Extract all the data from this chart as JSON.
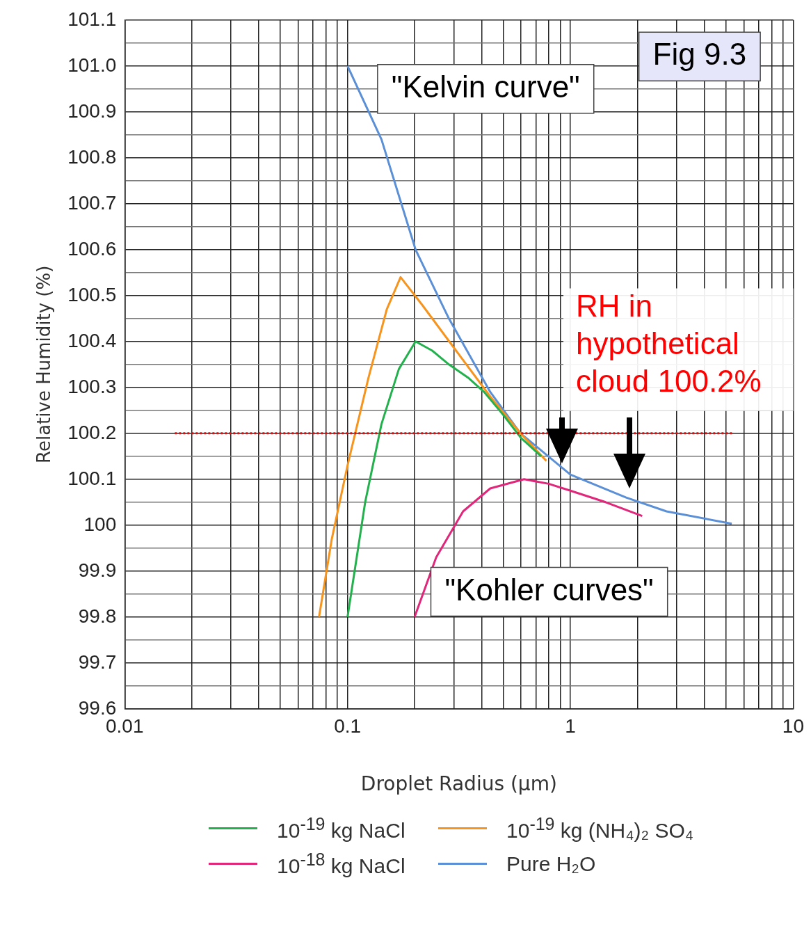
{
  "chart_data": {
    "type": "line",
    "xlabel": "Droplet Radius (μm)",
    "ylabel": "Relative Humidity (%)",
    "log": "x",
    "xlim": [
      0.01,
      10
    ],
    "ylim": [
      99.6,
      101.1
    ],
    "xticks": [
      0.01,
      {
        "value": 0.02,
        "label": null
      },
      {
        "value": 0.03,
        "label": null
      },
      {
        "value": 0.04,
        "label": null
      },
      {
        "value": 0.05,
        "label": null
      },
      {
        "value": 0.06,
        "label": null
      },
      {
        "value": 0.07,
        "label": null
      },
      {
        "value": 0.08,
        "label": null
      },
      {
        "value": 0.09,
        "label": null
      },
      0.1,
      {
        "value": 0.2,
        "label": null
      },
      {
        "value": 0.3,
        "label": null
      },
      {
        "value": 0.4,
        "label": null
      },
      {
        "value": 0.5,
        "label": null
      },
      {
        "value": 0.6,
        "label": null
      },
      {
        "value": 0.7,
        "label": null
      },
      {
        "value": 0.8,
        "label": null
      },
      {
        "value": 0.9,
        "label": null
      },
      1,
      {
        "value": 2,
        "label": null
      },
      {
        "value": 3,
        "label": null
      },
      {
        "value": 4,
        "label": null
      },
      {
        "value": 5,
        "label": null
      },
      {
        "value": 6,
        "label": null
      },
      {
        "value": 7,
        "label": null
      },
      {
        "value": 8,
        "label": null
      },
      {
        "value": 9,
        "label": null
      },
      10
    ],
    "yticks": [
      99.6,
      {
        "value": 99.65,
        "label": null
      },
      99.7,
      {
        "value": 99.75,
        "label": null
      },
      99.8,
      {
        "value": 99.85,
        "label": null
      },
      99.9,
      {
        "value": 99.95,
        "label": null
      },
      100,
      {
        "value": 100.05,
        "label": null
      },
      100.1,
      {
        "value": 100.15,
        "label": null
      },
      100.2,
      {
        "value": 100.25,
        "label": null
      },
      100.3,
      {
        "value": 100.35,
        "label": null
      },
      100.4,
      {
        "value": 100.45,
        "label": null
      },
      100.5,
      {
        "value": 100.55,
        "label": null
      },
      100.6,
      {
        "value": 100.65,
        "label": null
      },
      100.7,
      {
        "value": 100.75,
        "label": null
      },
      100.8,
      {
        "value": 100.85,
        "label": null
      },
      100.9,
      {
        "value": 100.95,
        "label": null
      },
      {
        "value": 101,
        "label": "101.0"
      },
      {
        "value": 101.05,
        "label": null
      },
      101.1
    ],
    "grid": true,
    "legend": "bottom",
    "marker": "none",
    "line_style": "solid",
    "series": [
      {
        "name": "10$^{-19}$ kg NaCl",
        "color": "#22b14c",
        "x": [
          0.1,
          0.12,
          0.142,
          0.17,
          0.202,
          0.24,
          0.285,
          0.35,
          0.41,
          0.5,
          0.6,
          0.74
        ],
        "values": [
          99.8,
          100.05,
          100.22,
          100.34,
          100.4,
          100.38,
          100.35,
          100.32,
          100.29,
          100.24,
          100.19,
          100.15
        ]
      },
      {
        "name": "10$^{-19}$ kg (NH₄)₂ SO₄",
        "color": "#f7941d",
        "x": [
          0.0745,
          0.085,
          0.1,
          0.124,
          0.15,
          0.173,
          0.216,
          0.307,
          0.437,
          0.597,
          0.78
        ],
        "values": [
          99.8,
          99.97,
          100.13,
          100.32,
          100.47,
          100.54,
          100.48,
          100.38,
          100.28,
          100.2,
          100.14
        ]
      },
      {
        "name": "10$^{-18}$ kg NaCl",
        "color": "#e0277a",
        "x": [
          0.2,
          0.25,
          0.33,
          0.437,
          0.62,
          0.8,
          1,
          1.44,
          2.1
        ],
        "values": [
          99.8,
          99.93,
          100.03,
          100.08,
          100.1,
          100.09,
          100.075,
          100.05,
          100.02
        ]
      },
      {
        "name": "Pure H₂O",
        "color": "#5b8fd6",
        "x": [
          0.1,
          0.142,
          0.202,
          0.285,
          0.437,
          0.597,
          1,
          1.78,
          2.7,
          5.3
        ],
        "values": [
          101.0,
          100.84,
          100.6,
          100.45,
          100.29,
          100.2,
          100.11,
          100.06,
          100.03,
          100.003
        ]
      }
    ],
    "ref_lines": [
      {
        "axis": "y",
        "value": 100.2,
        "label": "RH in hypothetical cloud 100.2%",
        "color": "#ff0000",
        "line_style": "dotted"
      }
    ],
    "annotations": [
      "Fig 9.3",
      "\"Kelvin curve\"",
      "\"Kohler curves\""
    ]
  }
}
